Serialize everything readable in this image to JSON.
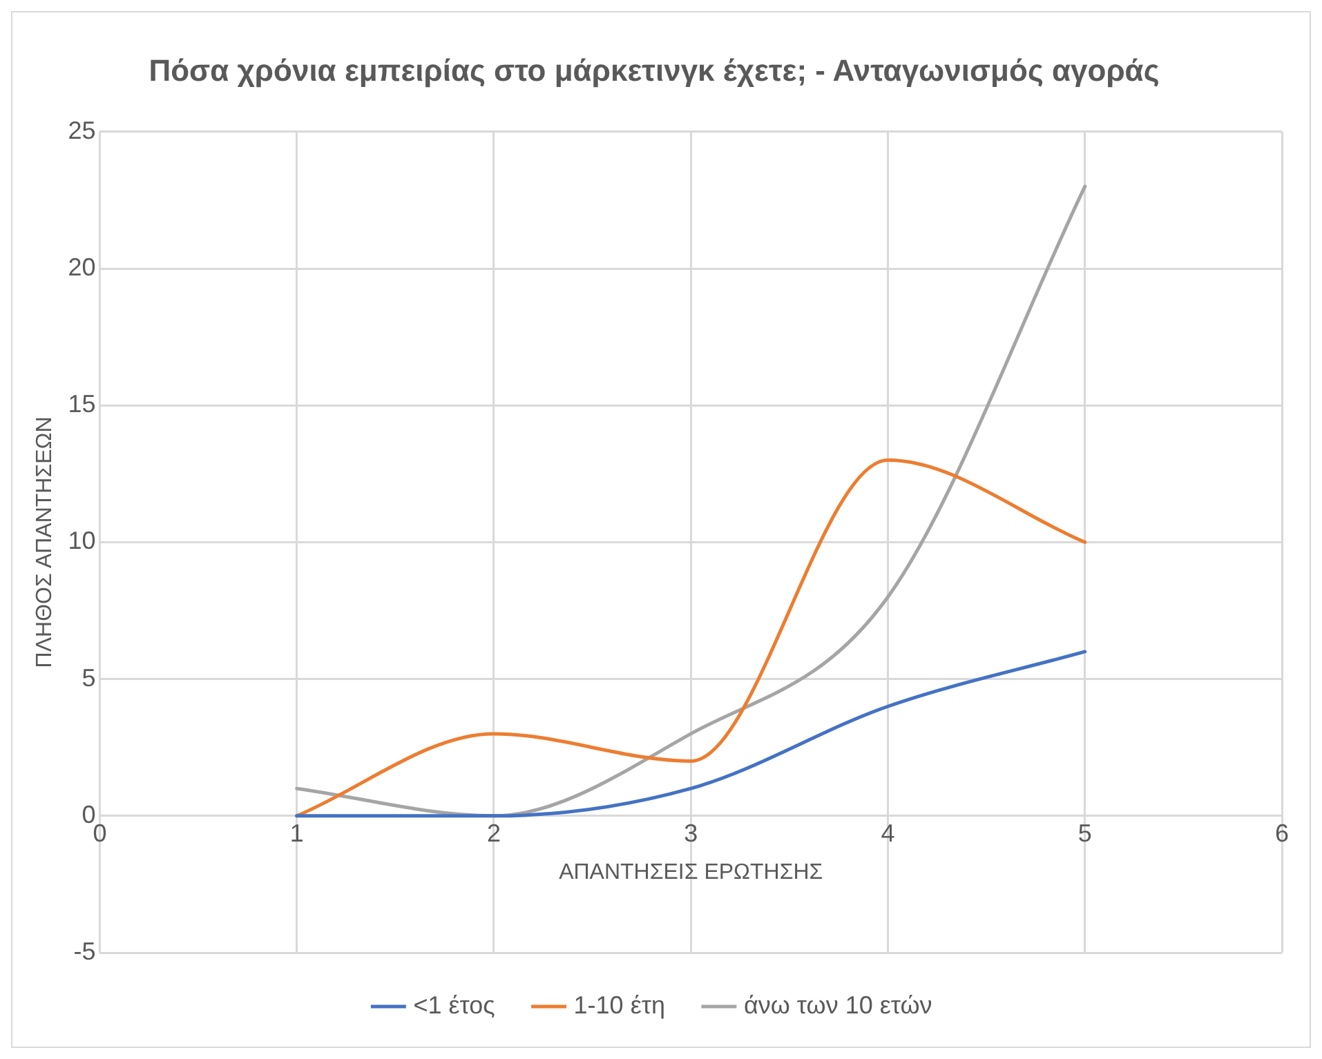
{
  "chart_data": {
    "type": "line",
    "title": "Πόσα χρόνια εμπειρίας στο μάρκετινγκ έχετε; - Ανταγωνισμός αγοράς",
    "xlabel": "ΑΠΑΝΤΗΣΕΙΣ ΕΡΩΤΗΣΗΣ",
    "ylabel": "ΠΛΗΘΟΣ ΑΠΑΝΤΗΣΕΩΝ",
    "x": [
      1,
      2,
      3,
      4,
      5
    ],
    "series": [
      {
        "name": "<1 έτος",
        "color": "#4472c4",
        "values": [
          0,
          0,
          1,
          4,
          6
        ]
      },
      {
        "name": "1-10 έτη",
        "color": "#ed7d31",
        "values": [
          0,
          3,
          2,
          13,
          10
        ]
      },
      {
        "name": "άνω των 10 ετών",
        "color": "#a5a5a5",
        "values": [
          1,
          0,
          3,
          8,
          23
        ]
      }
    ],
    "xlim": [
      0,
      6
    ],
    "xticks": [
      0,
      1,
      2,
      3,
      4,
      5,
      6
    ],
    "ylim": [
      -5,
      25
    ],
    "yticks": [
      -5,
      0,
      5,
      10,
      15,
      20,
      25
    ],
    "grid": true,
    "legend": "bottom",
    "marker": "none",
    "line_style": "solid"
  }
}
